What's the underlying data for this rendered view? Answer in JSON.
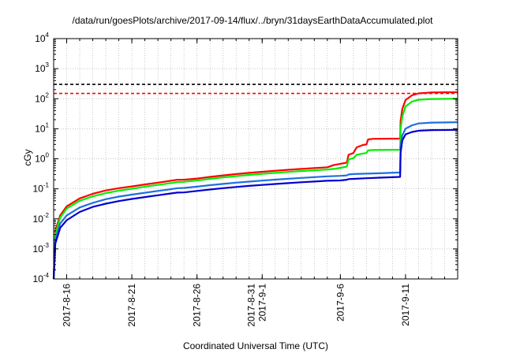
{
  "chart_data": {
    "type": "line",
    "title": "/data/run/goesPlots/archive/2017-09-14/flux/../bryn/31daysEarthDataAccumulated.plot",
    "xlabel": "Coordinated Universal Time (UTC)",
    "ylabel": "cGy",
    "yscale": "log",
    "xlim": [
      "2017-08-15",
      "2017-09-15"
    ],
    "ylim": [
      0.0001,
      10000
    ],
    "grid": true,
    "legend": "none",
    "x_ticks": [
      {
        "x": "2017-08-16",
        "lines": [
          "2017-8-16"
        ]
      },
      {
        "x": "2017-08-21",
        "lines": [
          "2017-8-21"
        ]
      },
      {
        "x": "2017-08-26",
        "lines": [
          "2017-8-26"
        ]
      },
      {
        "x": "2017-08-31",
        "lines": [
          "2017-8-31",
          "2017-9-1"
        ]
      },
      {
        "x": "2017-09-06",
        "lines": [
          "2017-9-6"
        ]
      },
      {
        "x": "2017-09-11",
        "lines": [
          "2017-9-11"
        ]
      }
    ],
    "y_ticks": [
      {
        "value": 0.0001,
        "base": "10",
        "exp": "-4"
      },
      {
        "value": 0.001,
        "base": "10",
        "exp": "-3"
      },
      {
        "value": 0.01,
        "base": "10",
        "exp": "-2"
      },
      {
        "value": 0.1,
        "base": "10",
        "exp": "-1"
      },
      {
        "value": 1,
        "base": "10",
        "exp": "0"
      },
      {
        "value": 10,
        "base": "10",
        "exp": "1"
      },
      {
        "value": 100,
        "base": "10",
        "exp": "2"
      },
      {
        "value": 1000,
        "base": "10",
        "exp": "3"
      },
      {
        "value": 10000,
        "base": "10",
        "exp": "4"
      }
    ],
    "thresholds": [
      {
        "y": 300,
        "color": "#000000"
      },
      {
        "y": 150,
        "color": "#ff0000"
      }
    ],
    "series": [
      {
        "color": "#ff0000",
        "points": [
          [
            "2017-08-15T00:00",
            0.0001
          ],
          [
            "2017-08-15T03:00",
            0.004
          ],
          [
            "2017-08-15T12:00",
            0.013
          ],
          [
            "2017-08-16T00:00",
            0.026
          ],
          [
            "2017-08-17T00:00",
            0.048
          ],
          [
            "2017-08-18T00:00",
            0.068
          ],
          [
            "2017-08-19T00:00",
            0.088
          ],
          [
            "2017-08-20T00:00",
            0.105
          ],
          [
            "2017-08-21T00:00",
            0.12
          ],
          [
            "2017-08-22T00:00",
            0.14
          ],
          [
            "2017-08-23T00:00",
            0.16
          ],
          [
            "2017-08-24T00:00",
            0.185
          ],
          [
            "2017-08-24T12:00",
            0.2
          ],
          [
            "2017-08-25T00:00",
            0.2
          ],
          [
            "2017-08-26T00:00",
            0.22
          ],
          [
            "2017-08-27T00:00",
            0.25
          ],
          [
            "2017-08-28T00:00",
            0.28
          ],
          [
            "2017-08-29T00:00",
            0.31
          ],
          [
            "2017-08-30T00:00",
            0.34
          ],
          [
            "2017-08-31T00:00",
            0.37
          ],
          [
            "2017-09-01T00:00",
            0.4
          ],
          [
            "2017-09-02T00:00",
            0.43
          ],
          [
            "2017-09-03T00:00",
            0.46
          ],
          [
            "2017-09-04T00:00",
            0.49
          ],
          [
            "2017-09-05T00:00",
            0.52
          ],
          [
            "2017-09-05T12:00",
            0.62
          ],
          [
            "2017-09-06T00:00",
            0.68
          ],
          [
            "2017-09-06T12:00",
            0.75
          ],
          [
            "2017-09-06T15:00",
            1.35
          ],
          [
            "2017-09-07T00:00",
            1.55
          ],
          [
            "2017-09-07T06:00",
            2.4
          ],
          [
            "2017-09-07T18:00",
            2.9
          ],
          [
            "2017-09-08T00:00",
            3.0
          ],
          [
            "2017-09-08T03:00",
            4.4
          ],
          [
            "2017-09-08T12:00",
            4.6
          ],
          [
            "2017-09-10T14:00",
            4.7
          ],
          [
            "2017-09-10T15:00",
            18
          ],
          [
            "2017-09-10T18:00",
            45
          ],
          [
            "2017-09-11T00:00",
            90
          ],
          [
            "2017-09-11T12:00",
            130
          ],
          [
            "2017-09-12T00:00",
            150
          ],
          [
            "2017-09-13T00:00",
            162
          ],
          [
            "2017-09-15T00:00",
            165
          ]
        ]
      },
      {
        "color": "#00ee00",
        "points": [
          [
            "2017-08-15T00:00",
            0.0001
          ],
          [
            "2017-08-15T03:00",
            0.003
          ],
          [
            "2017-08-15T12:00",
            0.011
          ],
          [
            "2017-08-16T00:00",
            0.022
          ],
          [
            "2017-08-17T00:00",
            0.04
          ],
          [
            "2017-08-18T00:00",
            0.056
          ],
          [
            "2017-08-19T00:00",
            0.072
          ],
          [
            "2017-08-20T00:00",
            0.087
          ],
          [
            "2017-08-21T00:00",
            0.1
          ],
          [
            "2017-08-22T00:00",
            0.118
          ],
          [
            "2017-08-23T00:00",
            0.135
          ],
          [
            "2017-08-24T00:00",
            0.155
          ],
          [
            "2017-08-24T12:00",
            0.168
          ],
          [
            "2017-08-25T00:00",
            0.17
          ],
          [
            "2017-08-26T00:00",
            0.19
          ],
          [
            "2017-08-27T00:00",
            0.215
          ],
          [
            "2017-08-28T00:00",
            0.24
          ],
          [
            "2017-08-29T00:00",
            0.265
          ],
          [
            "2017-08-30T00:00",
            0.29
          ],
          [
            "2017-08-31T00:00",
            0.315
          ],
          [
            "2017-09-01T00:00",
            0.34
          ],
          [
            "2017-09-02T00:00",
            0.365
          ],
          [
            "2017-09-03T00:00",
            0.39
          ],
          [
            "2017-09-04T00:00",
            0.415
          ],
          [
            "2017-09-05T00:00",
            0.44
          ],
          [
            "2017-09-05T12:00",
            0.46
          ],
          [
            "2017-09-06T00:00",
            0.5
          ],
          [
            "2017-09-06T12:00",
            0.55
          ],
          [
            "2017-09-06T15:00",
            0.95
          ],
          [
            "2017-09-07T00:00",
            1.05
          ],
          [
            "2017-09-07T06:00",
            1.35
          ],
          [
            "2017-09-07T18:00",
            1.5
          ],
          [
            "2017-09-08T00:00",
            1.55
          ],
          [
            "2017-09-08T03:00",
            1.9
          ],
          [
            "2017-09-08T12:00",
            1.95
          ],
          [
            "2017-09-10T14:00",
            2.0
          ],
          [
            "2017-09-10T15:00",
            10
          ],
          [
            "2017-09-10T18:00",
            25
          ],
          [
            "2017-09-11T00:00",
            55
          ],
          [
            "2017-09-11T12:00",
            80
          ],
          [
            "2017-09-12T00:00",
            92
          ],
          [
            "2017-09-13T00:00",
            98
          ],
          [
            "2017-09-15T00:00",
            100
          ]
        ]
      },
      {
        "color": "#1e6fe0",
        "points": [
          [
            "2017-08-15T00:00",
            0.0001
          ],
          [
            "2017-08-15T03:00",
            0.002
          ],
          [
            "2017-08-15T12:00",
            0.007
          ],
          [
            "2017-08-16T00:00",
            0.013
          ],
          [
            "2017-08-17T00:00",
            0.024
          ],
          [
            "2017-08-18T00:00",
            0.034
          ],
          [
            "2017-08-19T00:00",
            0.045
          ],
          [
            "2017-08-20T00:00",
            0.055
          ],
          [
            "2017-08-21T00:00",
            0.064
          ],
          [
            "2017-08-22T00:00",
            0.074
          ],
          [
            "2017-08-23T00:00",
            0.085
          ],
          [
            "2017-08-24T00:00",
            0.097
          ],
          [
            "2017-08-24T12:00",
            0.105
          ],
          [
            "2017-08-25T00:00",
            0.107
          ],
          [
            "2017-08-26T00:00",
            0.118
          ],
          [
            "2017-08-27T00:00",
            0.132
          ],
          [
            "2017-08-28T00:00",
            0.146
          ],
          [
            "2017-08-29T00:00",
            0.16
          ],
          [
            "2017-08-30T00:00",
            0.174
          ],
          [
            "2017-08-31T00:00",
            0.188
          ],
          [
            "2017-09-01T00:00",
            0.202
          ],
          [
            "2017-09-02T00:00",
            0.216
          ],
          [
            "2017-09-03T00:00",
            0.23
          ],
          [
            "2017-09-04T00:00",
            0.245
          ],
          [
            "2017-09-05T00:00",
            0.26
          ],
          [
            "2017-09-06T00:00",
            0.27
          ],
          [
            "2017-09-06T12:00",
            0.28
          ],
          [
            "2017-09-06T15:00",
            0.3
          ],
          [
            "2017-09-07T00:00",
            0.31
          ],
          [
            "2017-09-08T00:00",
            0.32
          ],
          [
            "2017-09-09T00:00",
            0.33
          ],
          [
            "2017-09-10T14:00",
            0.35
          ],
          [
            "2017-09-10T15:00",
            2.5
          ],
          [
            "2017-09-10T18:00",
            6
          ],
          [
            "2017-09-11T00:00",
            10
          ],
          [
            "2017-09-11T12:00",
            13
          ],
          [
            "2017-09-12T00:00",
            15
          ],
          [
            "2017-09-13T00:00",
            16
          ],
          [
            "2017-09-15T00:00",
            16.5
          ]
        ]
      },
      {
        "color": "#0000d0",
        "points": [
          [
            "2017-08-15T00:00",
            0.0001
          ],
          [
            "2017-08-15T03:00",
            0.0015
          ],
          [
            "2017-08-15T12:00",
            0.005
          ],
          [
            "2017-08-16T00:00",
            0.009
          ],
          [
            "2017-08-17T00:00",
            0.017
          ],
          [
            "2017-08-18T00:00",
            0.025
          ],
          [
            "2017-08-19T00:00",
            0.032
          ],
          [
            "2017-08-20T00:00",
            0.039
          ],
          [
            "2017-08-21T00:00",
            0.046
          ],
          [
            "2017-08-22T00:00",
            0.053
          ],
          [
            "2017-08-23T00:00",
            0.061
          ],
          [
            "2017-08-24T00:00",
            0.07
          ],
          [
            "2017-08-24T12:00",
            0.075
          ],
          [
            "2017-08-25T00:00",
            0.076
          ],
          [
            "2017-08-26T00:00",
            0.085
          ],
          [
            "2017-08-27T00:00",
            0.095
          ],
          [
            "2017-08-28T00:00",
            0.105
          ],
          [
            "2017-08-29T00:00",
            0.115
          ],
          [
            "2017-08-30T00:00",
            0.125
          ],
          [
            "2017-08-31T00:00",
            0.135
          ],
          [
            "2017-09-01T00:00",
            0.145
          ],
          [
            "2017-09-02T00:00",
            0.155
          ],
          [
            "2017-09-03T00:00",
            0.165
          ],
          [
            "2017-09-04T00:00",
            0.175
          ],
          [
            "2017-09-05T00:00",
            0.185
          ],
          [
            "2017-09-06T00:00",
            0.19
          ],
          [
            "2017-09-06T12:00",
            0.2
          ],
          [
            "2017-09-06T15:00",
            0.21
          ],
          [
            "2017-09-07T00:00",
            0.215
          ],
          [
            "2017-09-08T00:00",
            0.225
          ],
          [
            "2017-09-09T00:00",
            0.235
          ],
          [
            "2017-09-10T14:00",
            0.25
          ],
          [
            "2017-09-10T15:00",
            1.6
          ],
          [
            "2017-09-10T18:00",
            4
          ],
          [
            "2017-09-11T00:00",
            6.5
          ],
          [
            "2017-09-11T12:00",
            7.8
          ],
          [
            "2017-09-12T00:00",
            8.6
          ],
          [
            "2017-09-13T00:00",
            9.0
          ],
          [
            "2017-09-15T00:00",
            9.2
          ]
        ]
      }
    ]
  }
}
